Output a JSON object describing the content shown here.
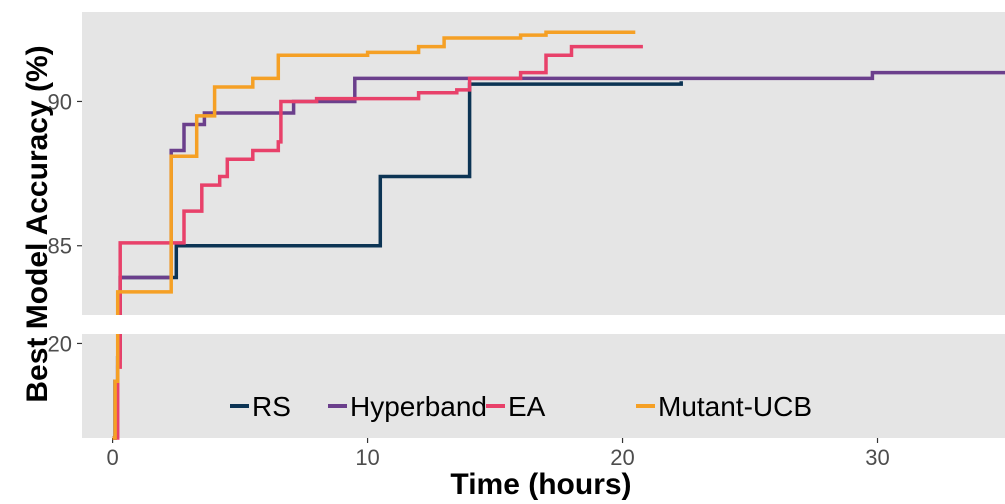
{
  "chart_data": {
    "type": "line",
    "xlabel": "Time (hours)",
    "ylabel": "Best Model Accuracy (%)",
    "x_ticks": [
      0,
      10,
      20,
      30
    ],
    "upper_y_ticks": [
      85,
      90
    ],
    "lower_y_ticks": [
      20
    ],
    "xlim": [
      -1.2,
      35
    ],
    "upper_ylim": [
      82.6,
      93.1
    ],
    "lower_ylim": [
      0,
      22
    ],
    "grid": false,
    "legend_position": "bottom-inside",
    "panel_background": "#e5e5e5",
    "series": [
      {
        "name": "RS",
        "color": "#0c3454",
        "points": [
          [
            0,
            0
          ],
          [
            0.1,
            12
          ],
          [
            0.2,
            17
          ],
          [
            0.3,
            83.9
          ],
          [
            0.5,
            83.9
          ],
          [
            2.5,
            85.0
          ],
          [
            10.5,
            85.0
          ],
          [
            10.5,
            87.4
          ],
          [
            14,
            87.4
          ],
          [
            14,
            90.6
          ],
          [
            22.3,
            90.7
          ]
        ]
      },
      {
        "name": "Hyperband",
        "color": "#6b3f8c",
        "points": [
          [
            0,
            0
          ],
          [
            0.1,
            12
          ],
          [
            0.2,
            17
          ],
          [
            0.3,
            83.9
          ],
          [
            2.2,
            83.9
          ],
          [
            2.3,
            88.3
          ],
          [
            2.8,
            89.2
          ],
          [
            3.5,
            89.2
          ],
          [
            3.6,
            89.6
          ],
          [
            7.0,
            89.6
          ],
          [
            7.1,
            90.0
          ],
          [
            9.5,
            90.0
          ],
          [
            9.5,
            90.8
          ],
          [
            15,
            90.8
          ],
          [
            20,
            90.8
          ],
          [
            29.8,
            90.8
          ],
          [
            29.8,
            91.0
          ],
          [
            35,
            91.0
          ]
        ]
      },
      {
        "name": "EA",
        "color": "#e8416a",
        "points": [
          [
            0,
            0
          ],
          [
            0.2,
            15
          ],
          [
            0.3,
            85.1
          ],
          [
            2.4,
            85.1
          ],
          [
            2.8,
            86.2
          ],
          [
            3.5,
            87.1
          ],
          [
            4.2,
            87.4
          ],
          [
            4.5,
            88.0
          ],
          [
            5.5,
            88.3
          ],
          [
            6.5,
            88.6
          ],
          [
            6.6,
            90.0
          ],
          [
            8,
            90.1
          ],
          [
            12,
            90.3
          ],
          [
            13.5,
            90.4
          ],
          [
            14,
            90.8
          ],
          [
            16,
            91.0
          ],
          [
            17,
            91.6
          ],
          [
            18,
            91.9
          ],
          [
            20.8,
            91.9
          ]
        ]
      },
      {
        "name": "Mutant-UCB",
        "color": "#f5a025",
        "points": [
          [
            0,
            0
          ],
          [
            0.1,
            12
          ],
          [
            0.2,
            83.4
          ],
          [
            2.2,
            83.4
          ],
          [
            2.3,
            88.1
          ],
          [
            3.2,
            88.1
          ],
          [
            3.3,
            89.5
          ],
          [
            4.0,
            90.5
          ],
          [
            5.5,
            90.8
          ],
          [
            6.5,
            91.6
          ],
          [
            10,
            91.7
          ],
          [
            12,
            91.9
          ],
          [
            13,
            92.2
          ],
          [
            16,
            92.3
          ],
          [
            17,
            92.4
          ],
          [
            20.5,
            92.4
          ]
        ]
      }
    ]
  }
}
